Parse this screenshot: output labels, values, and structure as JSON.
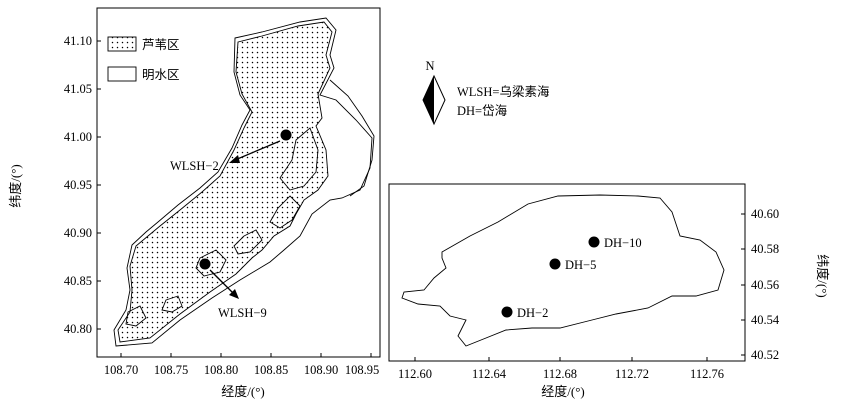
{
  "left_map": {
    "legend": {
      "reed_label": "芦苇区",
      "water_label": "明水区"
    },
    "xlabel": "经度/(°)",
    "ylabel": "纬度/(°)",
    "x_ticks": [
      "108.70",
      "108.75",
      "108.80",
      "108.85",
      "108.90",
      "108.95"
    ],
    "y_ticks": [
      "41.10",
      "41.05",
      "41.00",
      "40.95",
      "40.90",
      "40.85",
      "40.80"
    ],
    "stations": [
      {
        "label": "WLSH−2",
        "lon": 108.867,
        "lat": 41.0
      },
      {
        "label": "WLSH−9",
        "lon": 108.787,
        "lat": 40.867
      }
    ]
  },
  "right_map": {
    "xlabel": "经度/(°)",
    "ylabel": "纬度/(°)",
    "x_ticks": [
      "112.60",
      "112.64",
      "112.68",
      "112.72",
      "112.76"
    ],
    "y_ticks": [
      "40.60",
      "40.58",
      "40.56",
      "40.54",
      "40.52"
    ],
    "stations": [
      {
        "label": "DH−10",
        "lon": 112.699,
        "lat": 40.586
      },
      {
        "label": "DH−5",
        "lon": 112.679,
        "lat": 40.569
      },
      {
        "label": "DH−2",
        "lon": 112.654,
        "lat": 40.54
      }
    ]
  },
  "compass": {
    "north": "N"
  },
  "key": {
    "wlsh": "WLSH=乌梁素海",
    "dh": "DH=岱海"
  }
}
